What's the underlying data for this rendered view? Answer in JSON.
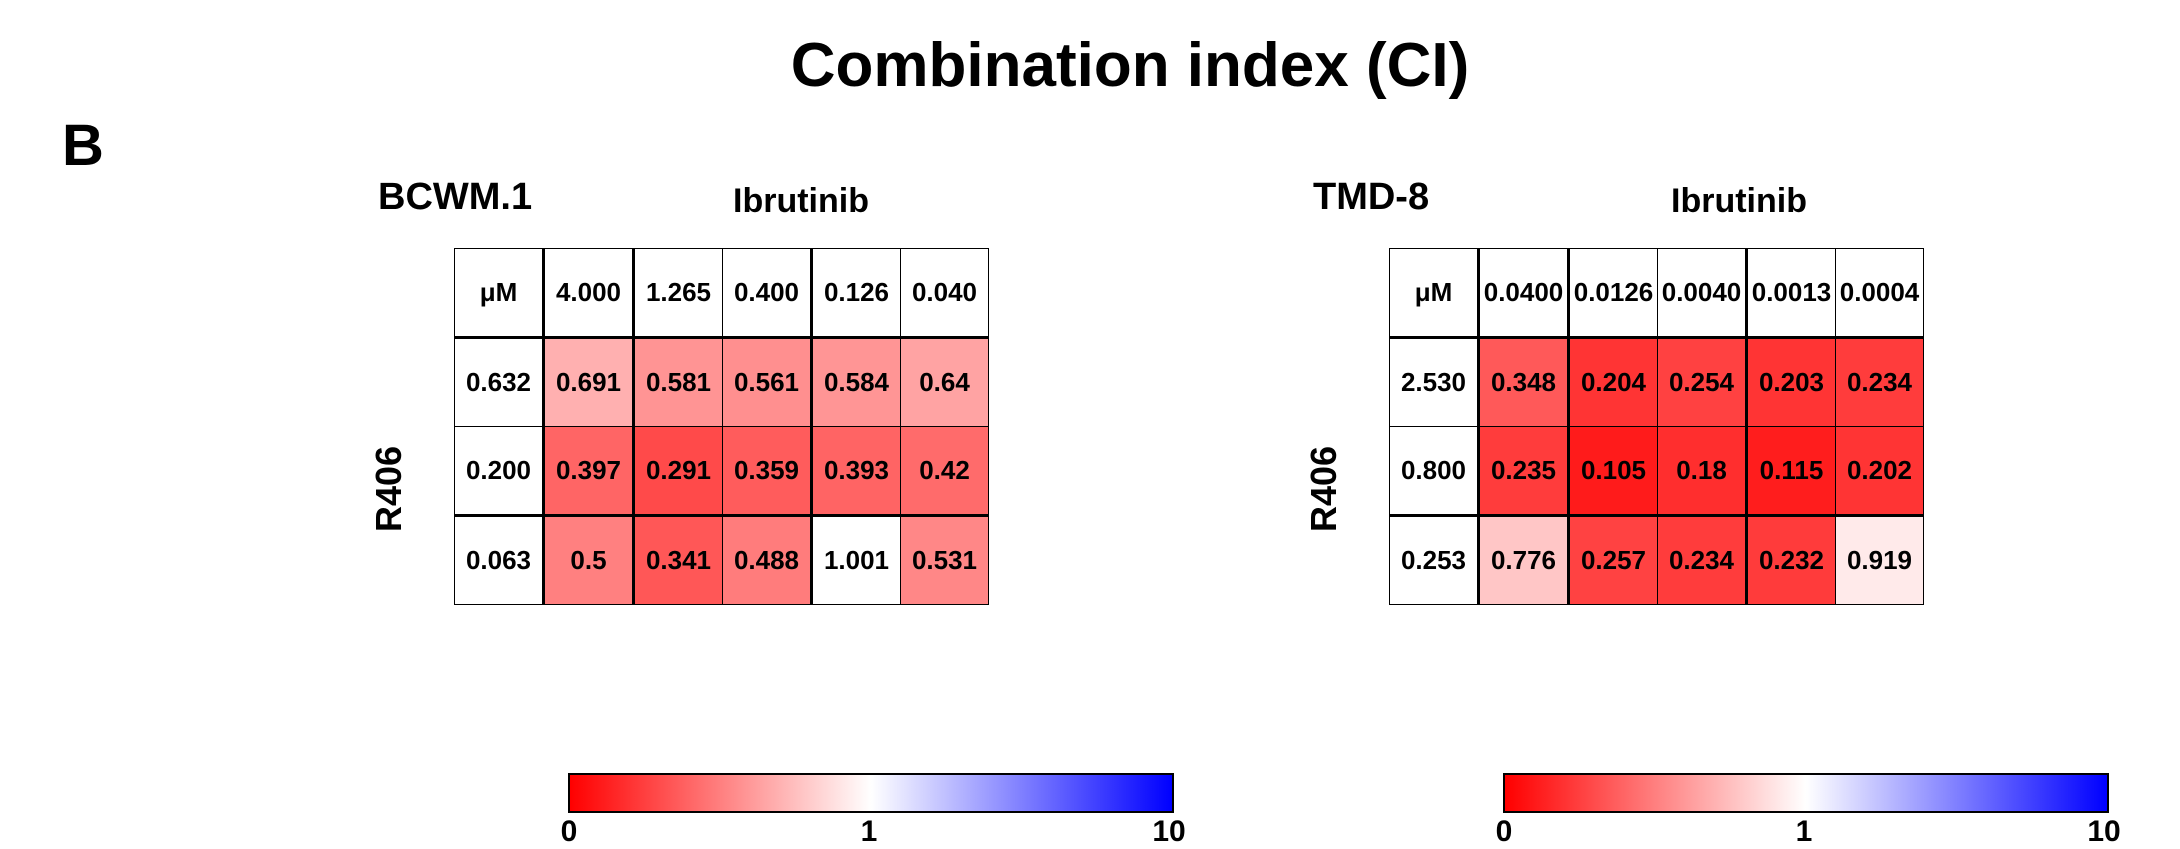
{
  "figure": {
    "title": "Combination index (CI)",
    "panel_label": "B"
  },
  "colorbar": {
    "ticks": [
      "0",
      "1",
      "10"
    ],
    "colors": [
      "#ff0000",
      "#ffffff",
      "#0000ff"
    ]
  },
  "chart_data": [
    {
      "type": "heatmap",
      "title": "BCWM.1",
      "xlabel": "Ibrutinib",
      "ylabel": "R406",
      "corner_label": "μM",
      "x": [
        "4.000",
        "1.265",
        "0.400",
        "0.126",
        "0.040"
      ],
      "y": [
        "0.632",
        "0.200",
        "0.063"
      ],
      "values": [
        [
          "0.691",
          "0.581",
          "0.561",
          "0.584",
          "0.64"
        ],
        [
          "0.397",
          "0.291",
          "0.359",
          "0.393",
          "0.42"
        ],
        [
          "0.5",
          "0.341",
          "0.488",
          "1.001",
          "0.531"
        ]
      ],
      "colorscale": {
        "min": 0,
        "mid": 1,
        "max": 10,
        "colors": [
          "#ff0000",
          "#ffffff",
          "#0000ff"
        ]
      }
    },
    {
      "type": "heatmap",
      "title": "TMD-8",
      "xlabel": "Ibrutinib",
      "ylabel": "R406",
      "corner_label": "μM",
      "x": [
        "0.0400",
        "0.0126",
        "0.0040",
        "0.0013",
        "0.0004"
      ],
      "y": [
        "2.530",
        "0.800",
        "0.253"
      ],
      "values": [
        [
          "0.348",
          "0.204",
          "0.254",
          "0.203",
          "0.234"
        ],
        [
          "0.235",
          "0.105",
          "0.18",
          "0.115",
          "0.202"
        ],
        [
          "0.776",
          "0.257",
          "0.234",
          "0.232",
          "0.919"
        ]
      ],
      "colorscale": {
        "min": 0,
        "mid": 1,
        "max": 10,
        "colors": [
          "#ff0000",
          "#ffffff",
          "#0000ff"
        ]
      }
    }
  ]
}
